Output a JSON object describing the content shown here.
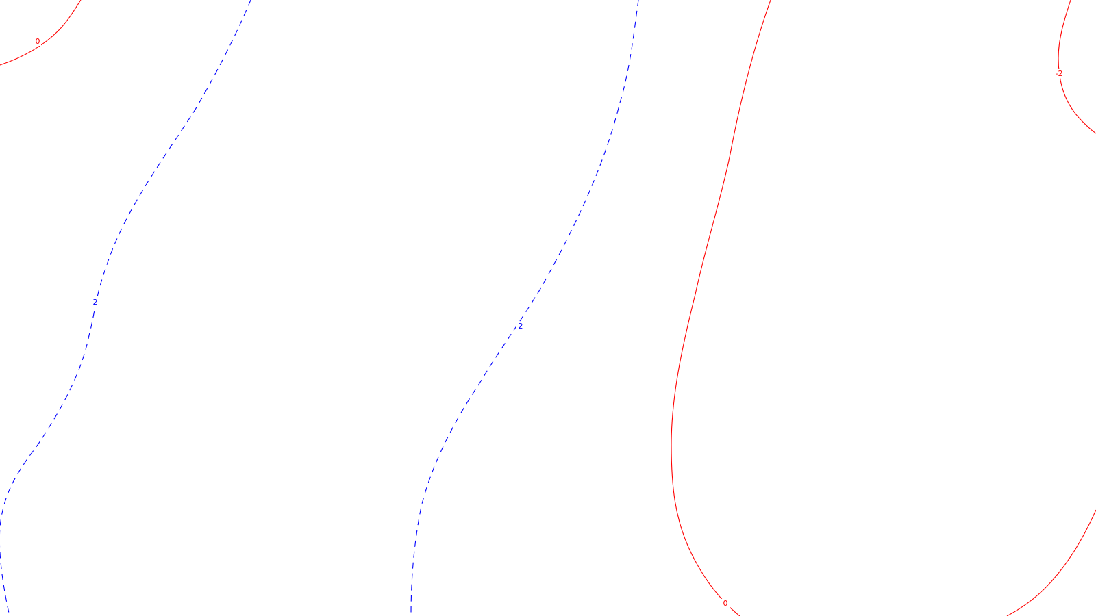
{
  "chart_data": {
    "type": "contour",
    "title": "",
    "xlabel": "",
    "ylabel": "",
    "legend": "none",
    "grid": false,
    "colors": {
      "positive": "#0000ff",
      "zero": "#ff0000",
      "negative": "#ff0000",
      "background": "#ffffff"
    },
    "levels": [
      {
        "id": "zero-top-left",
        "value": 0,
        "label": "0",
        "style": "solid",
        "color": "#ff0000"
      },
      {
        "id": "pos-left",
        "value": 2,
        "label": "2",
        "style": "dashed",
        "color": "#0000ff"
      },
      {
        "id": "pos-middle",
        "value": 2,
        "label": "2",
        "style": "dashed",
        "color": "#0000ff"
      },
      {
        "id": "zero-right",
        "value": 0,
        "label": "0",
        "style": "solid",
        "color": "#ff0000"
      },
      {
        "id": "neg-top-right",
        "value": -2,
        "label": "-2",
        "style": "solid",
        "color": "#ff0000"
      },
      {
        "id": "zero-bottom-right",
        "value": 0,
        "label": "",
        "style": "solid",
        "color": "#ff0000"
      }
    ]
  }
}
